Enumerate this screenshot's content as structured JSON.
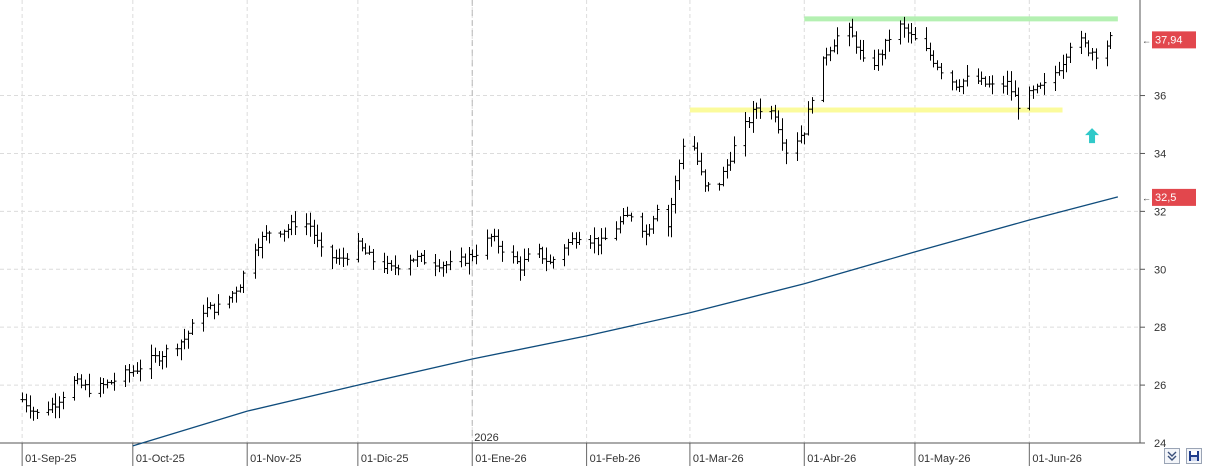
{
  "chart_data": {
    "type": "ohlc",
    "title": "",
    "xlabel": "",
    "ylabel": "",
    "ylim": [
      24,
      39.3
    ],
    "yticks": [
      24,
      26,
      28,
      30,
      32,
      34,
      36
    ],
    "grid": true,
    "date_axis": {
      "labels": [
        "01-Sep-25",
        "01-Oct-25",
        "01-Nov-25",
        "01-Dic-25",
        "01-Ene-26",
        "01-Feb-26",
        "01-Mar-26",
        "01-Abr-26",
        "01-May-26",
        "01-Jun-26"
      ],
      "dates": [
        "2025-09-01",
        "2025-10-01",
        "2025-11-01",
        "2025-12-01",
        "2026-01-01",
        "2026-02-01",
        "2026-03-01",
        "2026-04-01",
        "2026-05-01",
        "2026-06-01"
      ],
      "year_marker": {
        "label": "2026",
        "date": "2026-01-01"
      }
    },
    "price_keypoints": [
      [
        "2025-09-01",
        25.5
      ],
      [
        "2025-09-05",
        25.0
      ],
      [
        "2025-09-10",
        25.4
      ],
      [
        "2025-09-15",
        26.1
      ],
      [
        "2025-09-20",
        25.8
      ],
      [
        "2025-09-25",
        26.1
      ],
      [
        "2025-10-01",
        26.5
      ],
      [
        "2025-10-08",
        27.0
      ],
      [
        "2025-10-15",
        27.6
      ],
      [
        "2025-10-20",
        28.6
      ],
      [
        "2025-10-25",
        28.7
      ],
      [
        "2025-10-30",
        29.5
      ],
      [
        "2025-11-03",
        30.8
      ],
      [
        "2025-11-07",
        31.3
      ],
      [
        "2025-11-12",
        31.4
      ],
      [
        "2025-11-15",
        31.7
      ],
      [
        "2025-11-18",
        31.5
      ],
      [
        "2025-11-21",
        30.6
      ],
      [
        "2025-11-26",
        30.3
      ],
      [
        "2025-12-01",
        30.8
      ],
      [
        "2025-12-05",
        30.3
      ],
      [
        "2025-12-10",
        30.0
      ],
      [
        "2025-12-15",
        30.4
      ],
      [
        "2025-12-20",
        30.3
      ],
      [
        "2025-12-27",
        30.1
      ],
      [
        "2026-01-02",
        30.6
      ],
      [
        "2026-01-06",
        31.1
      ],
      [
        "2026-01-10",
        30.6
      ],
      [
        "2026-01-14",
        30.1
      ],
      [
        "2026-01-18",
        30.7
      ],
      [
        "2026-01-22",
        30.2
      ],
      [
        "2026-01-26",
        30.8
      ],
      [
        "2026-01-30",
        31.2
      ],
      [
        "2026-02-05",
        30.9
      ],
      [
        "2026-02-10",
        31.6
      ],
      [
        "2026-02-14",
        32.0
      ],
      [
        "2026-02-17",
        31.2
      ],
      [
        "2026-02-20",
        32.2
      ],
      [
        "2026-02-23",
        31.5
      ],
      [
        "2026-02-25",
        33.0
      ],
      [
        "2026-02-28",
        35.0
      ],
      [
        "2026-03-02",
        34.2
      ],
      [
        "2026-03-05",
        32.8
      ],
      [
        "2026-03-09",
        33.0
      ],
      [
        "2026-03-14",
        34.5
      ],
      [
        "2026-03-19",
        35.6
      ],
      [
        "2026-03-24",
        35.4
      ],
      [
        "2026-03-27",
        34.1
      ],
      [
        "2026-04-01",
        34.8
      ],
      [
        "2026-04-03",
        36.0
      ],
      [
        "2026-04-07",
        37.5
      ],
      [
        "2026-04-12",
        38.4
      ],
      [
        "2026-04-15",
        37.8
      ],
      [
        "2026-04-18",
        36.8
      ],
      [
        "2026-04-22",
        37.5
      ],
      [
        "2026-04-26",
        38.5
      ],
      [
        "2026-05-01",
        37.9
      ],
      [
        "2026-05-05",
        37.4
      ],
      [
        "2026-05-08",
        36.9
      ],
      [
        "2026-05-12",
        36.4
      ],
      [
        "2026-05-16",
        36.6
      ],
      [
        "2026-05-22",
        36.3
      ],
      [
        "2026-05-26",
        36.4
      ],
      [
        "2026-05-29",
        35.7
      ],
      [
        "2026-06-02",
        36.1
      ],
      [
        "2026-06-06",
        36.4
      ],
      [
        "2026-06-10",
        37.2
      ],
      [
        "2026-06-13",
        38.1
      ],
      [
        "2026-06-17",
        37.6
      ],
      [
        "2026-06-20",
        37.4
      ],
      [
        "2026-06-23",
        37.94
      ]
    ],
    "moving_average": [
      [
        "2025-10-01",
        23.9
      ],
      [
        "2025-11-01",
        25.1
      ],
      [
        "2025-12-01",
        26.0
      ],
      [
        "2026-01-01",
        26.9
      ],
      [
        "2026-02-01",
        27.7
      ],
      [
        "2026-03-01",
        28.5
      ],
      [
        "2026-04-01",
        29.5
      ],
      [
        "2026-05-01",
        30.6
      ],
      [
        "2026-06-01",
        31.7
      ],
      [
        "2026-06-25",
        32.5
      ]
    ],
    "levels": [
      {
        "value": 38.65,
        "from": "2026-04-01",
        "to": "2026-06-25",
        "color": "#b4f0b2"
      },
      {
        "value": 35.5,
        "from": "2026-03-01",
        "to": "2026-06-10",
        "color": "#fbfb9c"
      }
    ],
    "last_price": {
      "label": "37,94",
      "value": 37.94
    },
    "ma_last": {
      "label": "32,5",
      "value": 32.5
    },
    "signal": {
      "type": "up-arrow",
      "date": "2026-06-18",
      "value": 34.6,
      "color": "#30c9c9"
    },
    "colors": {
      "bars": "#000000",
      "ma": "#0f4c7c",
      "badge": "#e2474d",
      "grid": "#dcdcdc"
    }
  },
  "controls": {
    "collapse_icon": "double-chevron-down-icon",
    "save_icon": "save-icon"
  }
}
